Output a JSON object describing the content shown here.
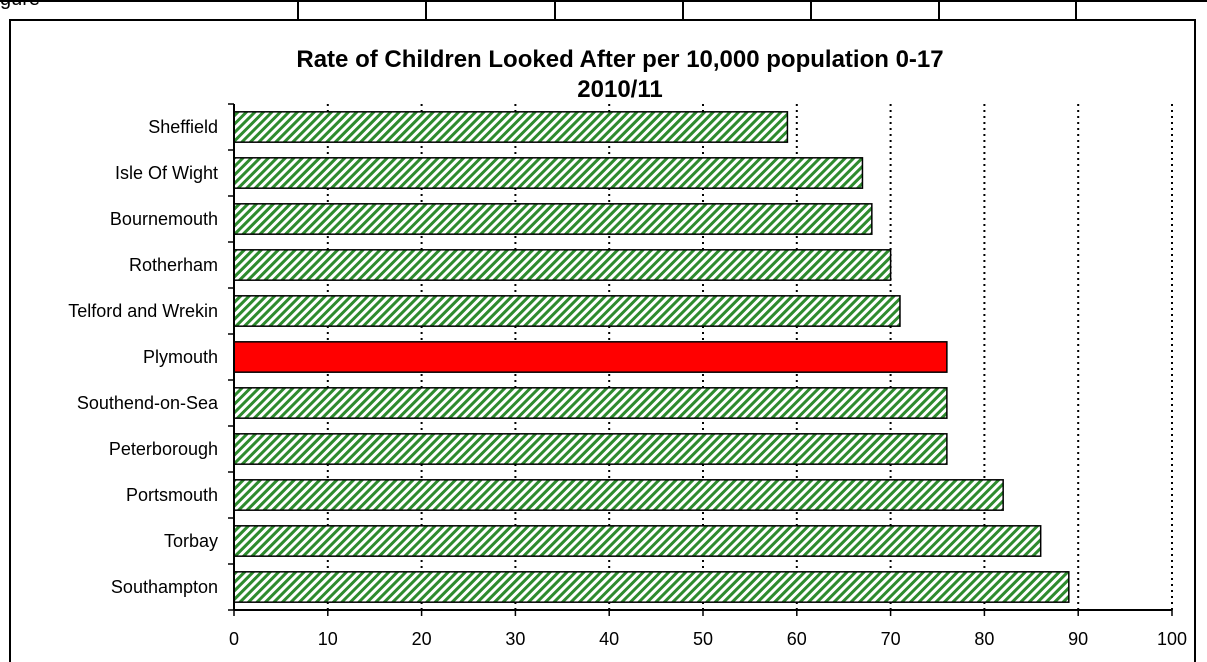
{
  "header_strip": {
    "label": "gure"
  },
  "chart_data": {
    "type": "bar",
    "orientation": "horizontal",
    "title": [
      "Rate of Children Looked After per 10,000 population 0-17",
      "2010/11"
    ],
    "categories": [
      "Sheffield",
      "Isle Of Wight",
      "Bournemouth",
      "Rotherham",
      "Telford and Wrekin",
      "Plymouth",
      "Southend-on-Sea",
      "Peterborough",
      "Portsmouth",
      "Torbay",
      "Southampton"
    ],
    "values": [
      59,
      67,
      68,
      70,
      71,
      76,
      76,
      76,
      82,
      86,
      89
    ],
    "highlight_category": "Plymouth",
    "xlim": [
      0,
      100
    ],
    "xticks": [
      0,
      10,
      20,
      30,
      40,
      50,
      60,
      70,
      80,
      90,
      100
    ],
    "grid": "vertical dotted",
    "legend": "none",
    "colors": {
      "bar_hatch_green": "#2e8b2e",
      "bar_hatch_light": "#ffffff",
      "highlight": "#ff0000",
      "outline": "#000000"
    }
  }
}
